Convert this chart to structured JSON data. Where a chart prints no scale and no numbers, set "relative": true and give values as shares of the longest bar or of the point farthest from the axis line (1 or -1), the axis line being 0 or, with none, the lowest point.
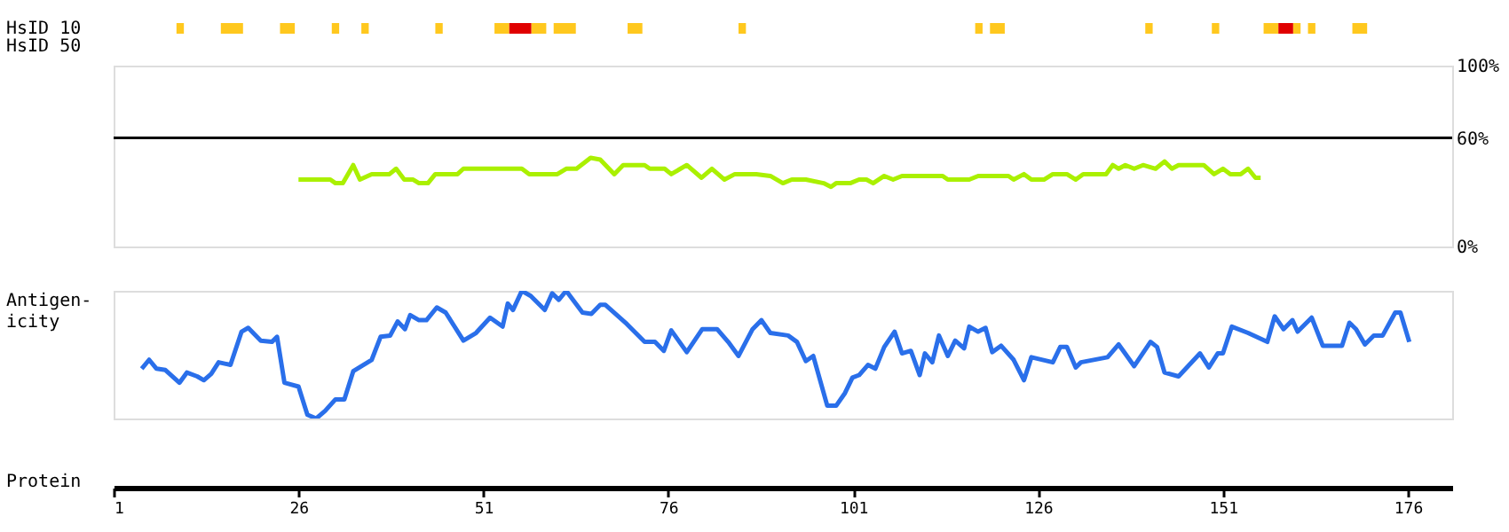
{
  "chart_data": [
    {
      "type": "bar",
      "orientation": "horizontal",
      "categories": [
        "HsID 10",
        "HsID 50"
      ],
      "xlim": [
        1,
        182
      ],
      "tick_labels": "y",
      "series": [
        {
          "color": "#ffc81e",
          "base": [
            9.5,
            null
          ],
          "values": [
            1,
            null
          ]
        },
        {
          "color": "#ffc81e",
          "base": [
            15.5,
            null
          ],
          "values": [
            3,
            null
          ]
        },
        {
          "color": "#ffc81e",
          "base": [
            23.5,
            null
          ],
          "values": [
            2,
            null
          ]
        },
        {
          "color": "#ffc81e",
          "base": [
            30.5,
            null
          ],
          "values": [
            1,
            null
          ]
        },
        {
          "color": "#ffc81e",
          "base": [
            34.5,
            null
          ],
          "values": [
            1,
            null
          ]
        },
        {
          "color": "#ffc81e",
          "base": [
            44.5,
            null
          ],
          "values": [
            1,
            null
          ]
        },
        {
          "color": "#ffc81e",
          "base": [
            52.5,
            null
          ],
          "values": [
            2,
            null
          ]
        },
        {
          "color": "#e00000",
          "base": [
            54.5,
            null
          ],
          "values": [
            3,
            null
          ]
        },
        {
          "color": "#ffc81e",
          "base": [
            57.5,
            null
          ],
          "values": [
            2,
            null
          ]
        },
        {
          "color": "#ffc81e",
          "base": [
            60.5,
            null
          ],
          "values": [
            3,
            null
          ]
        },
        {
          "color": "#ffc81e",
          "base": [
            70.5,
            null
          ],
          "values": [
            2,
            null
          ]
        },
        {
          "color": "#ffc81e",
          "base": [
            85.5,
            null
          ],
          "values": [
            1,
            null
          ]
        },
        {
          "color": "#ffc81e",
          "base": [
            117.5,
            null
          ],
          "values": [
            1,
            null
          ]
        },
        {
          "color": "#ffc81e",
          "base": [
            119.5,
            null
          ],
          "values": [
            2,
            null
          ]
        },
        {
          "color": "#ffc81e",
          "base": [
            140.5,
            null
          ],
          "values": [
            1,
            null
          ]
        },
        {
          "color": "#ffc81e",
          "base": [
            149.5,
            null
          ],
          "values": [
            1,
            null
          ]
        },
        {
          "color": "#ffc81e",
          "base": [
            156.5,
            null
          ],
          "values": [
            2,
            null
          ]
        },
        {
          "color": "#e00000",
          "base": [
            158.5,
            null
          ],
          "values": [
            2,
            null
          ]
        },
        {
          "color": "#ffc81e",
          "base": [
            160.5,
            null
          ],
          "values": [
            1,
            null
          ]
        },
        {
          "color": "#ffc81e",
          "base": [
            162.5,
            null
          ],
          "values": [
            1,
            null
          ]
        },
        {
          "color": "#ffc81e",
          "base": [
            168.5,
            null
          ],
          "values": [
            2,
            null
          ]
        }
      ]
    },
    {
      "type": "line",
      "xlim": [
        1,
        182
      ],
      "ylim": [
        0,
        100
      ],
      "tick_labels": "y",
      "yticks": [
        {
          "value": 0,
          "label": "0%"
        },
        {
          "value": 60,
          "label": "60%"
        },
        {
          "value": 100,
          "label": "100%"
        }
      ],
      "grid": false,
      "marker": "none",
      "line_style": "solid",
      "ref_lines": [
        {
          "axis": "y",
          "value": 60,
          "label": null,
          "color": "#000000"
        }
      ],
      "series": [
        {
          "color": "#aaf000",
          "x": [
            26,
            30.3,
            31,
            32,
            33.4,
            34.3,
            35.9,
            38.3,
            39.2,
            40.3,
            41.5,
            42.3,
            43.5,
            44.5,
            47.5,
            48.3,
            56.2,
            57.2,
            61,
            62.2,
            63.6,
            65.5,
            66.8,
            68.7,
            69.9,
            72.8,
            73.5,
            75.5,
            76.4,
            78.5,
            80.5,
            81.9,
            83.6,
            85,
            87.9,
            89.8,
            91.5,
            92.7,
            94.6,
            97,
            98,
            98.7,
            100.6,
            101.8,
            102.8,
            103.7,
            105.2,
            106.4,
            107.6,
            113.1,
            113.8,
            116.7,
            117.9,
            122,
            122.7,
            124.1,
            125.1,
            126.8,
            128,
            129.9,
            131.1,
            132.1,
            135.2,
            136.1,
            136.9,
            137.8,
            139,
            140.2,
            141.9,
            143.1,
            144.1,
            145,
            148.4,
            149.8,
            151,
            152,
            153.4,
            154.4,
            155.4,
            156.1
          ],
          "values": [
            37,
            37,
            35,
            35,
            45,
            37,
            40,
            40,
            43,
            37,
            37,
            35,
            35,
            40,
            40,
            43,
            43,
            40,
            40,
            43,
            43,
            49,
            48,
            40,
            45,
            45,
            43,
            43,
            40,
            45,
            38,
            43,
            37,
            40,
            40,
            39,
            35,
            37,
            37,
            35,
            33,
            35,
            35,
            37,
            37,
            35,
            39,
            37,
            39,
            39,
            37,
            37,
            39,
            39,
            37,
            40,
            37,
            37,
            40,
            40,
            37,
            40,
            40,
            45,
            43,
            45,
            43,
            45,
            43,
            47,
            43,
            45,
            45,
            40,
            43,
            40,
            40,
            43,
            38,
            38
          ]
        }
      ]
    },
    {
      "type": "line",
      "relative": true,
      "xlim": [
        1,
        182
      ],
      "xlabel": "Protein",
      "ylabel": "Antigen-\nicity",
      "xticks": [
        1,
        26,
        51,
        76,
        101,
        126,
        151,
        176
      ],
      "grid": false,
      "marker": "none",
      "line_style": "solid",
      "series": [
        {
          "color": "#2a6fea",
          "x": [
            4.8,
            5.8,
            6.8,
            8,
            9.9,
            10.9,
            12.3,
            13.2,
            14.2,
            15.2,
            16.8,
            18.3,
            19.2,
            20.9,
            22.4,
            23.1,
            24.1,
            26,
            27.2,
            28.4,
            29.6,
            31,
            32.2,
            33.4,
            35.9,
            37.1,
            38.4,
            39.4,
            40.4,
            41.1,
            42.3,
            43.3,
            44.7,
            45.9,
            48.3,
            50,
            51.9,
            53.6,
            54.3,
            55,
            56.2,
            57.4,
            59.3,
            60.3,
            61.2,
            62.2,
            64.4,
            65.6,
            66.8,
            67.5,
            70.4,
            72.8,
            74.2,
            75.4,
            76.4,
            78.5,
            80.6,
            82.6,
            84.1,
            85.5,
            87.4,
            88.6,
            89.8,
            92.2,
            93.4,
            94.6,
            95.6,
            97.5,
            98.7,
            99.9,
            100.9,
            101.8,
            103,
            104,
            105.2,
            106.6,
            107.6,
            108.8,
            110,
            110.7,
            111.7,
            112.6,
            113.8,
            114.8,
            116,
            116.7,
            117.9,
            118.9,
            119.8,
            121,
            122.7,
            124.1,
            125.1,
            128,
            129,
            129.9,
            131.1,
            131.8,
            135.4,
            136.9,
            139,
            141.2,
            142.1,
            143.1,
            145,
            147.9,
            149.1,
            150.3,
            151,
            152.2,
            154.4,
            157,
            158,
            159.2,
            160.4,
            161.1,
            163,
            164.5,
            167.1,
            168.1,
            169,
            170.2,
            171.4,
            172.6,
            174.3,
            175,
            176.2
          ],
          "values": [
            0.39,
            0.46,
            0.39,
            0.38,
            0.28,
            0.36,
            0.33,
            0.3,
            0.35,
            0.44,
            0.42,
            0.68,
            0.71,
            0.61,
            0.6,
            0.64,
            0.28,
            0.25,
            0.03,
            0,
            0.06,
            0.15,
            0.15,
            0.37,
            0.46,
            0.64,
            0.65,
            0.76,
            0.7,
            0.81,
            0.77,
            0.77,
            0.87,
            0.83,
            0.61,
            0.67,
            0.79,
            0.72,
            0.9,
            0.85,
            1,
            0.96,
            0.85,
            0.98,
            0.93,
            1,
            0.83,
            0.82,
            0.89,
            0.89,
            0.74,
            0.6,
            0.6,
            0.53,
            0.69,
            0.52,
            0.7,
            0.7,
            0.6,
            0.49,
            0.7,
            0.77,
            0.67,
            0.65,
            0.6,
            0.45,
            0.49,
            0.1,
            0.1,
            0.2,
            0.32,
            0.34,
            0.42,
            0.39,
            0.56,
            0.68,
            0.51,
            0.53,
            0.34,
            0.51,
            0.44,
            0.65,
            0.49,
            0.61,
            0.55,
            0.72,
            0.68,
            0.71,
            0.52,
            0.57,
            0.46,
            0.3,
            0.48,
            0.44,
            0.56,
            0.56,
            0.4,
            0.44,
            0.48,
            0.58,
            0.41,
            0.6,
            0.56,
            0.36,
            0.33,
            0.51,
            0.4,
            0.51,
            0.51,
            0.72,
            0.67,
            0.6,
            0.8,
            0.7,
            0.77,
            0.68,
            0.79,
            0.57,
            0.57,
            0.75,
            0.7,
            0.58,
            0.65,
            0.65,
            0.83,
            0.83,
            0.6
          ]
        }
      ]
    }
  ]
}
